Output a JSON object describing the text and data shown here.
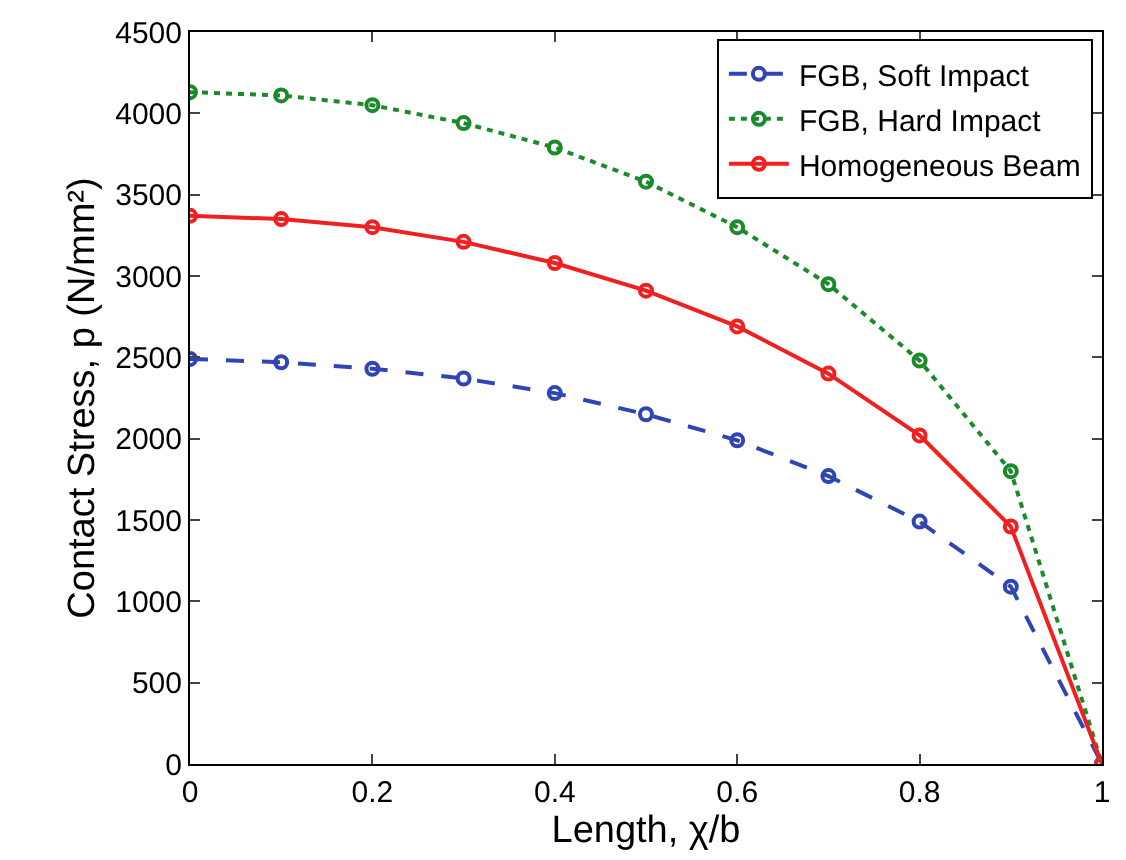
{
  "chart_data": {
    "type": "line",
    "xlabel": "Length, χ/b",
    "ylabel": "Contact Stress, p (N/mm²)",
    "x": [
      0,
      0.1,
      0.2,
      0.3,
      0.4,
      0.5,
      0.6,
      0.7,
      0.8,
      0.9,
      1
    ],
    "series": [
      {
        "name": "FGB, Soft Impact",
        "color": "#2f45b5",
        "line_style": "dashed",
        "values": [
          2490,
          2470,
          2430,
          2370,
          2280,
          2150,
          1990,
          1770,
          1490,
          1090,
          0
        ]
      },
      {
        "name": "FGB, Hard Impact",
        "color": "#1a8a2a",
        "line_style": "dotted",
        "values": [
          4130,
          4110,
          4050,
          3940,
          3790,
          3580,
          3300,
          2950,
          2480,
          1800,
          0
        ]
      },
      {
        "name": "Homogeneous Beam",
        "color": "#f02020",
        "line_style": "solid",
        "values": [
          3370,
          3350,
          3300,
          3210,
          3080,
          2910,
          2690,
          2400,
          2020,
          1460,
          0
        ]
      }
    ],
    "xlim": [
      0,
      1
    ],
    "xticks": [
      0,
      0.2,
      0.4,
      0.6,
      0.8,
      1
    ],
    "ylim": [
      0,
      4500
    ],
    "yticks": [
      0,
      500,
      1000,
      1500,
      2000,
      2500,
      3000,
      3500,
      4000,
      4500
    ],
    "grid": false,
    "legend": "top right",
    "marker": "circle"
  }
}
